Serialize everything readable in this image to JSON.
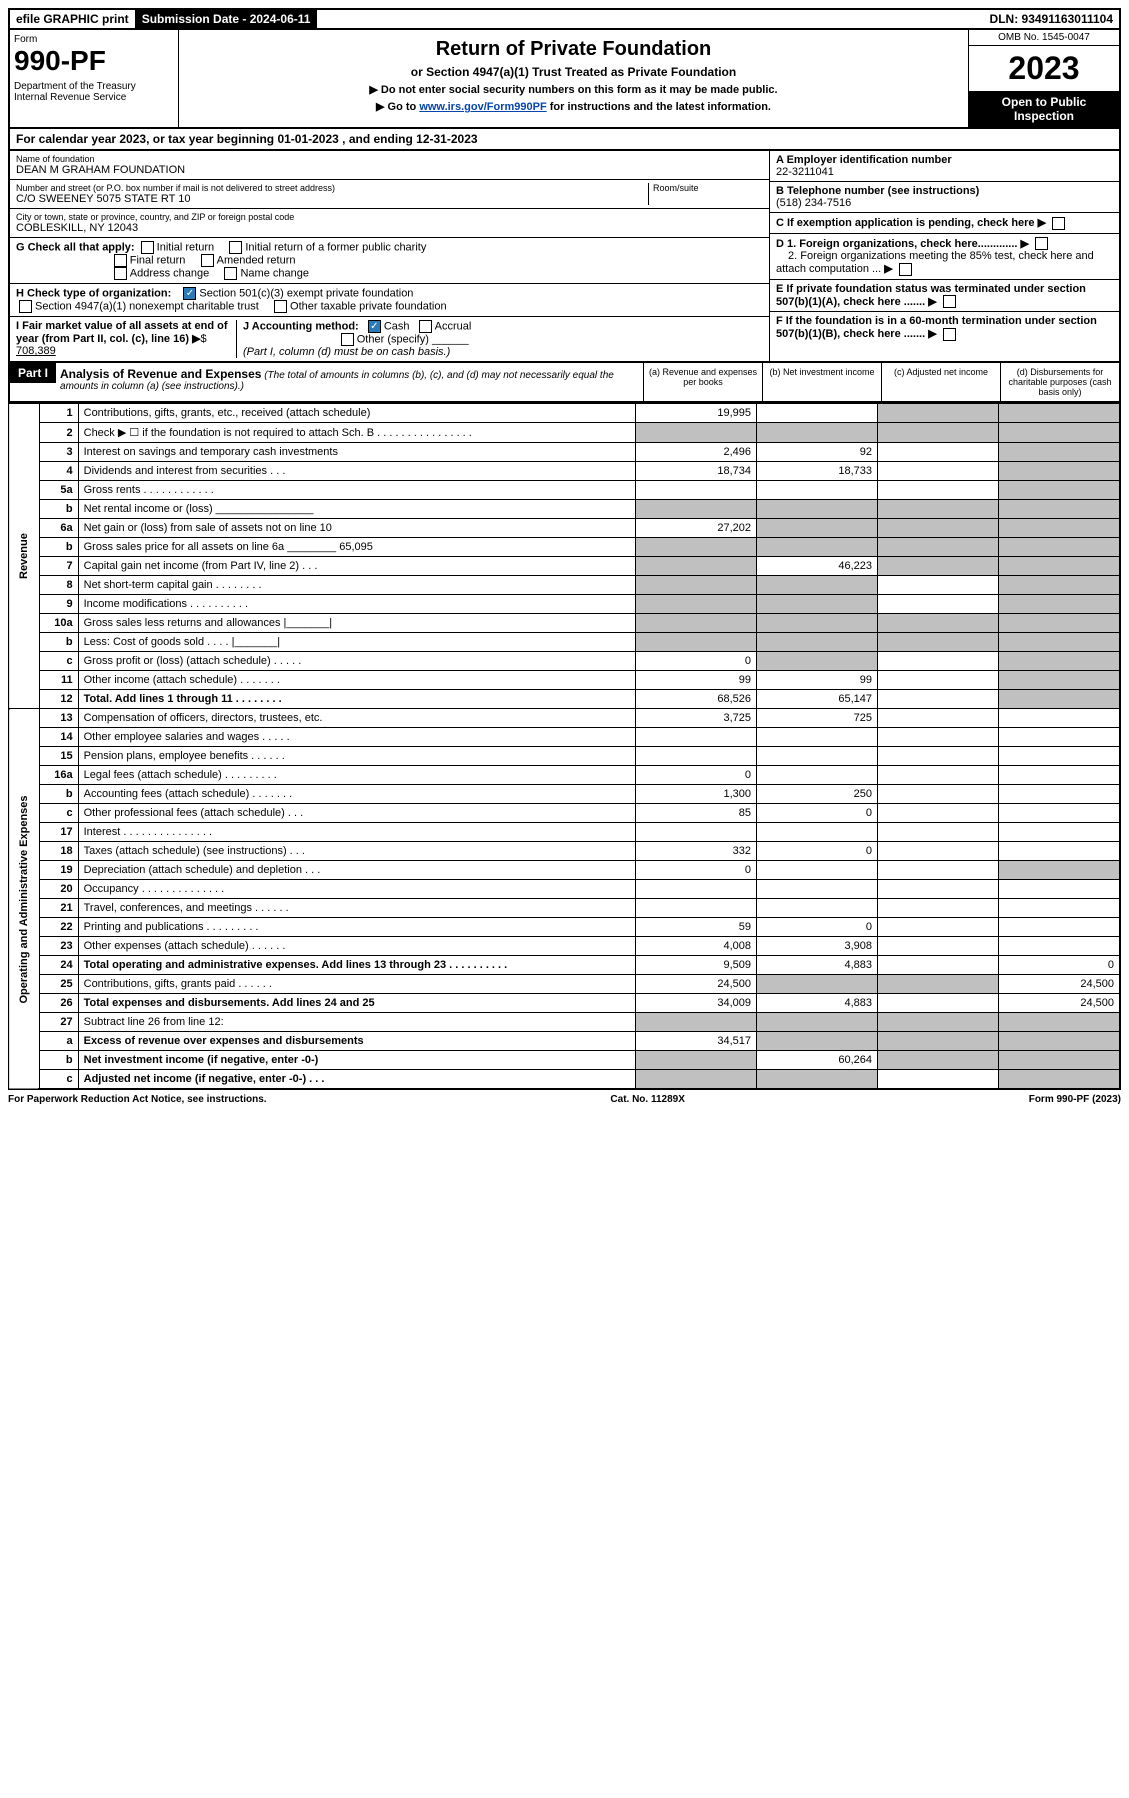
{
  "topbar": {
    "efile": "efile GRAPHIC print",
    "submission": "Submission Date - 2024-06-11",
    "dln": "DLN: 93491163011104"
  },
  "header": {
    "form_word": "Form",
    "form_number": "990-PF",
    "dept": "Department of the Treasury\nInternal Revenue Service",
    "title": "Return of Private Foundation",
    "subtitle": "or Section 4947(a)(1) Trust Treated as Private Foundation",
    "notice1": "▶ Do not enter social security numbers on this form as it may be made public.",
    "notice2_pre": "▶ Go to ",
    "notice2_link": "www.irs.gov/Form990PF",
    "notice2_post": " for instructions and the latest information.",
    "omb": "OMB No. 1545-0047",
    "year": "2023",
    "open": "Open to Public Inspection"
  },
  "calendar": "For calendar year 2023, or tax year beginning 01-01-2023            , and ending 12-31-2023",
  "foundation": {
    "name_label": "Name of foundation",
    "name": "DEAN M GRAHAM FOUNDATION",
    "addr_label": "Number and street (or P.O. box number if mail is not delivered to street address)",
    "addr": "C/O SWEENEY 5075 STATE RT 10",
    "room_label": "Room/suite",
    "city_label": "City or town, state or province, country, and ZIP or foreign postal code",
    "city": "COBLESKILL, NY  12043",
    "ein_label": "A Employer identification number",
    "ein": "22-3211041",
    "phone_label": "B Telephone number (see instructions)",
    "phone": "(518) 234-7516",
    "c_label": "C If exemption application is pending, check here",
    "d1": "D 1. Foreign organizations, check here.............",
    "d2": "2. Foreign organizations meeting the 85% test, check here and attach computation ...",
    "e": "E  If private foundation status was terminated under section 507(b)(1)(A), check here .......",
    "f": "F  If the foundation is in a 60-month termination under section 507(b)(1)(B), check here .......",
    "g_label": "G Check all that apply:",
    "g_opts": [
      "Initial return",
      "Initial return of a former public charity",
      "Final return",
      "Amended return",
      "Address change",
      "Name change"
    ],
    "h_label": "H Check type of organization:",
    "h1": "Section 501(c)(3) exempt private foundation",
    "h2": "Section 4947(a)(1) nonexempt charitable trust",
    "h3": "Other taxable private foundation",
    "i_label": "I Fair market value of all assets at end of year (from Part II, col. (c), line 16)",
    "i_val": "708,389",
    "j_label": "J Accounting method:",
    "j_cash": "Cash",
    "j_accrual": "Accrual",
    "j_other": "Other (specify)",
    "j_note": "(Part I, column (d) must be on cash basis.)"
  },
  "part1": {
    "label": "Part I",
    "title": "Analysis of Revenue and Expenses",
    "note": "(The total of amounts in columns (b), (c), and (d) may not necessarily equal the amounts in column (a) (see instructions).)",
    "col_a": "(a)   Revenue and expenses per books",
    "col_b": "(b)   Net investment income",
    "col_c": "(c)   Adjusted net income",
    "col_d": "(d)  Disbursements for charitable purposes (cash basis only)"
  },
  "sections": {
    "revenue": "Revenue",
    "expenses": "Operating and Administrative Expenses"
  },
  "rows": [
    {
      "n": "1",
      "d": "Contributions, gifts, grants, etc., received (attach schedule)",
      "a": "19,995",
      "b": "",
      "c": "grey",
      "dd": "grey"
    },
    {
      "n": "2",
      "d": "Check ▶ ☐ if the foundation is not required to attach Sch. B   .  .  .  .  .  .  .  .  .  .  .  .  .  .  .  .",
      "a": "grey",
      "b": "grey",
      "c": "grey",
      "dd": "grey"
    },
    {
      "n": "3",
      "d": "Interest on savings and temporary cash investments",
      "a": "2,496",
      "b": "92",
      "c": "",
      "dd": "grey"
    },
    {
      "n": "4",
      "d": "Dividends and interest from securities    .   .   .",
      "a": "18,734",
      "b": "18,733",
      "c": "",
      "dd": "grey"
    },
    {
      "n": "5a",
      "d": "Gross rents   .   .   .   .   .   .   .   .   .   .   .   .",
      "a": "",
      "b": "",
      "c": "",
      "dd": "grey"
    },
    {
      "n": "b",
      "d": "Net rental income or (loss)  ________________",
      "a": "grey",
      "b": "grey",
      "c": "grey",
      "dd": "grey"
    },
    {
      "n": "6a",
      "d": "Net gain or (loss) from sale of assets not on line 10",
      "a": "27,202",
      "b": "grey",
      "c": "grey",
      "dd": "grey"
    },
    {
      "n": "b",
      "d": "Gross sales price for all assets on line 6a ________ 65,095",
      "a": "grey",
      "b": "grey",
      "c": "grey",
      "dd": "grey"
    },
    {
      "n": "7",
      "d": "Capital gain net income (from Part IV, line 2)   .   .   .",
      "a": "grey",
      "b": "46,223",
      "c": "grey",
      "dd": "grey"
    },
    {
      "n": "8",
      "d": "Net short-term capital gain .   .   .   .   .   .   .   .",
      "a": "grey",
      "b": "grey",
      "c": "",
      "dd": "grey"
    },
    {
      "n": "9",
      "d": "Income modifications .   .   .   .   .   .   .   .   .   .",
      "a": "grey",
      "b": "grey",
      "c": "",
      "dd": "grey"
    },
    {
      "n": "10a",
      "d": "Gross sales less returns and allowances  |_______|",
      "a": "grey",
      "b": "grey",
      "c": "grey",
      "dd": "grey"
    },
    {
      "n": "b",
      "d": "Less: Cost of goods sold   .   .   .   .  |_______|",
      "a": "grey",
      "b": "grey",
      "c": "grey",
      "dd": "grey"
    },
    {
      "n": "c",
      "d": "Gross profit or (loss) (attach schedule)   .   .   .   .   .",
      "a": "0",
      "b": "grey",
      "c": "",
      "dd": "grey"
    },
    {
      "n": "11",
      "d": "Other income (attach schedule)   .   .   .   .   .   .   .",
      "a": "99",
      "b": "99",
      "c": "",
      "dd": "grey"
    },
    {
      "n": "12",
      "d": "Total. Add lines 1 through 11   .   .   .   .   .   .   .   .",
      "a": "68,526",
      "b": "65,147",
      "c": "",
      "dd": "grey",
      "bold": true
    },
    {
      "n": "13",
      "d": "Compensation of officers, directors, trustees, etc.",
      "a": "3,725",
      "b": "725",
      "c": "",
      "dd": ""
    },
    {
      "n": "14",
      "d": "Other employee salaries and wages   .   .   .   .   .",
      "a": "",
      "b": "",
      "c": "",
      "dd": ""
    },
    {
      "n": "15",
      "d": "Pension plans, employee benefits .   .   .   .   .   .",
      "a": "",
      "b": "",
      "c": "",
      "dd": ""
    },
    {
      "n": "16a",
      "d": "Legal fees (attach schedule) .   .   .   .   .   .   .   .   .",
      "a": "0",
      "b": "",
      "c": "",
      "dd": ""
    },
    {
      "n": "b",
      "d": "Accounting fees (attach schedule) .   .   .   .   .   .   .",
      "a": "1,300",
      "b": "250",
      "c": "",
      "dd": ""
    },
    {
      "n": "c",
      "d": "Other professional fees (attach schedule)   .   .   .",
      "a": "85",
      "b": "0",
      "c": "",
      "dd": ""
    },
    {
      "n": "17",
      "d": "Interest .   .   .   .   .   .   .   .   .   .   .   .   .   .   .",
      "a": "",
      "b": "",
      "c": "",
      "dd": ""
    },
    {
      "n": "18",
      "d": "Taxes (attach schedule) (see instructions)   .   .   .",
      "a": "332",
      "b": "0",
      "c": "",
      "dd": ""
    },
    {
      "n": "19",
      "d": "Depreciation (attach schedule) and depletion   .   .   .",
      "a": "0",
      "b": "",
      "c": "",
      "dd": "grey"
    },
    {
      "n": "20",
      "d": "Occupancy .   .   .   .   .   .   .   .   .   .   .   .   .   .",
      "a": "",
      "b": "",
      "c": "",
      "dd": ""
    },
    {
      "n": "21",
      "d": "Travel, conferences, and meetings .   .   .   .   .   .",
      "a": "",
      "b": "",
      "c": "",
      "dd": ""
    },
    {
      "n": "22",
      "d": "Printing and publications .   .   .   .   .   .   .   .   .",
      "a": "59",
      "b": "0",
      "c": "",
      "dd": ""
    },
    {
      "n": "23",
      "d": "Other expenses (attach schedule) .   .   .   .   .   .",
      "a": "4,008",
      "b": "3,908",
      "c": "",
      "dd": ""
    },
    {
      "n": "24",
      "d": "Total operating and administrative expenses. Add lines 13 through 23   .   .   .   .   .   .   .   .   .   .",
      "a": "9,509",
      "b": "4,883",
      "c": "",
      "dd": "0",
      "bold": true
    },
    {
      "n": "25",
      "d": "Contributions, gifts, grants paid   .   .   .   .   .   .",
      "a": "24,500",
      "b": "grey",
      "c": "grey",
      "dd": "24,500"
    },
    {
      "n": "26",
      "d": "Total expenses and disbursements. Add lines 24 and 25",
      "a": "34,009",
      "b": "4,883",
      "c": "",
      "dd": "24,500",
      "bold": true
    },
    {
      "n": "27",
      "d": "Subtract line 26 from line 12:",
      "a": "grey",
      "b": "grey",
      "c": "grey",
      "dd": "grey"
    },
    {
      "n": "a",
      "d": "Excess of revenue over expenses and disbursements",
      "a": "34,517",
      "b": "grey",
      "c": "grey",
      "dd": "grey",
      "bold": true
    },
    {
      "n": "b",
      "d": "Net investment income (if negative, enter -0-)",
      "a": "grey",
      "b": "60,264",
      "c": "grey",
      "dd": "grey",
      "bold": true
    },
    {
      "n": "c",
      "d": "Adjusted net income (if negative, enter -0-)   .   .   .",
      "a": "grey",
      "b": "grey",
      "c": "",
      "dd": "grey",
      "bold": true
    }
  ],
  "footer": {
    "left": "For Paperwork Reduction Act Notice, see instructions.",
    "center": "Cat. No. 11289X",
    "right": "Form 990-PF (2023)"
  }
}
